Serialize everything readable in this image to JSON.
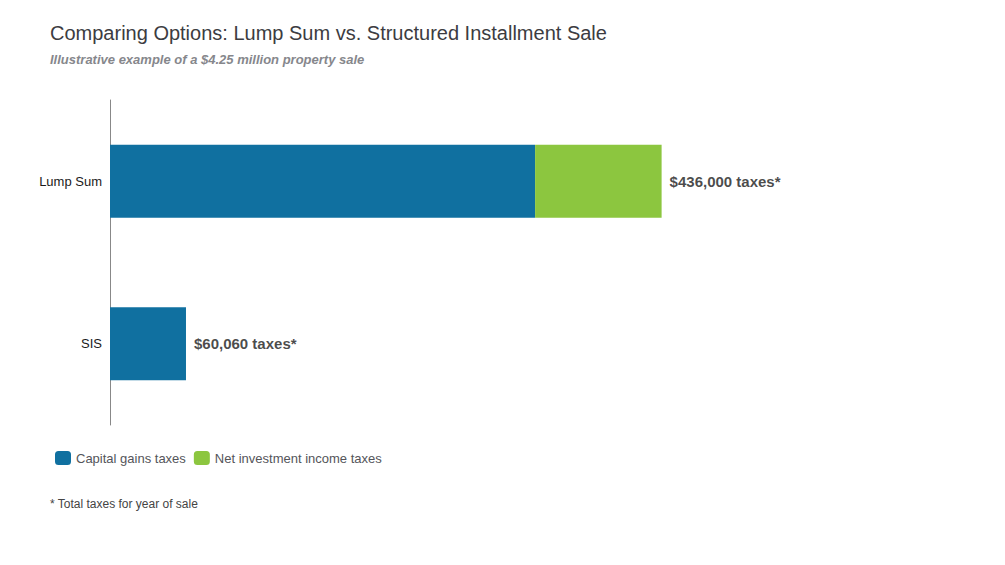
{
  "chart_data": {
    "type": "bar",
    "orientation": "horizontal",
    "stacked": true,
    "title": "Comparing Options: Lump Sum vs. Structured Installment Sale",
    "subtitle": "Illustrative example of a $4.25 million property sale",
    "footnote": "* Total taxes for year of sale",
    "categories": [
      "Lump Sum",
      "SIS"
    ],
    "series": [
      {
        "name": "Capital gains taxes",
        "color": "#1070a0",
        "values": [
          336000,
          60060
        ]
      },
      {
        "name": "Net investment income taxes",
        "color": "#8cc63f",
        "values": [
          100000,
          0
        ]
      }
    ],
    "annotations": [
      {
        "category": "Lump Sum",
        "value": 436000,
        "text": "$436,000 taxes*"
      },
      {
        "category": "SIS",
        "value": 60060,
        "text": "$60,060 taxes*"
      }
    ],
    "xlim": [
      0,
      675800
    ],
    "tick_labels": "y",
    "grid": false,
    "legend": "lower left"
  }
}
